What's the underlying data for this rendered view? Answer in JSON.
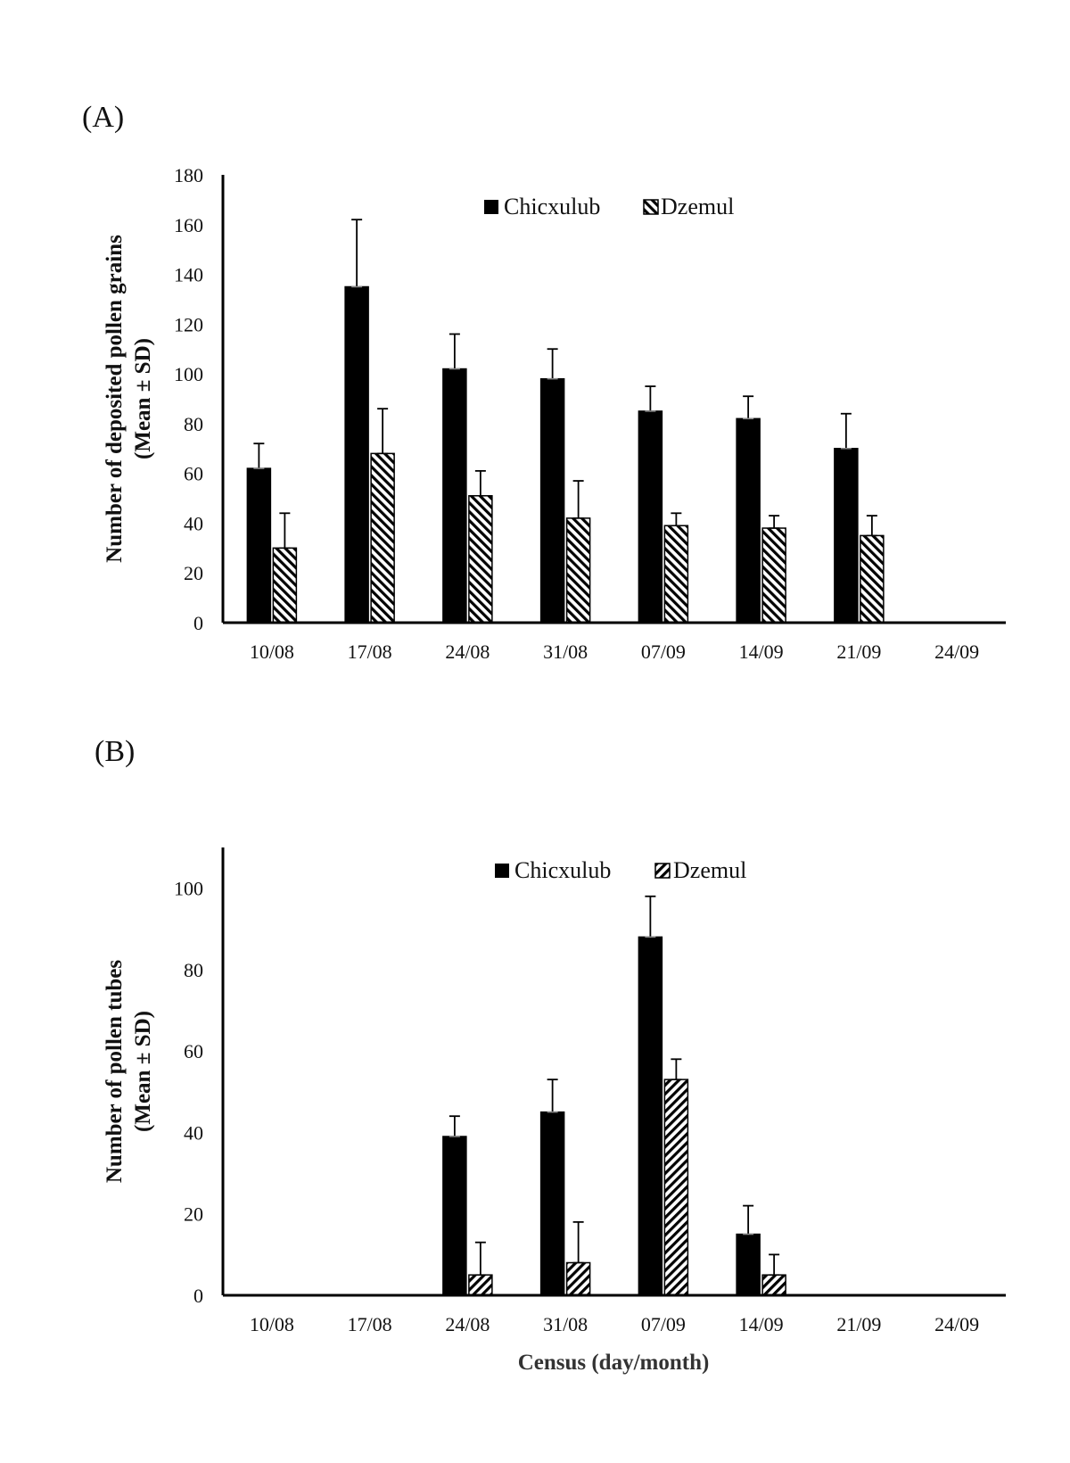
{
  "chart_data": [
    {
      "type": "bar",
      "panel": "(A)",
      "title": "",
      "ylabel": [
        "Number of deposited pollen grains",
        "(Mean ± SD)"
      ],
      "xlabel": "",
      "ylim": [
        0,
        180
      ],
      "yticks": [
        0,
        20,
        40,
        60,
        80,
        100,
        120,
        140,
        160,
        180
      ],
      "categories": [
        "10/08",
        "17/08",
        "24/08",
        "31/08",
        "07/09",
        "14/09",
        "21/09",
        "24/09"
      ],
      "legend_position": "top-center",
      "series": [
        {
          "name": "Chicxulub",
          "pattern": "solid",
          "values": [
            62,
            135,
            102,
            98,
            85,
            82,
            70,
            null
          ],
          "sd": [
            10,
            27,
            14,
            12,
            10,
            9,
            14,
            null
          ]
        },
        {
          "name": "Dzemul",
          "pattern": "hatch-back",
          "values": [
            30,
            68,
            51,
            42,
            39,
            38,
            35,
            null
          ],
          "sd": [
            14,
            18,
            10,
            15,
            5,
            5,
            8,
            null
          ]
        }
      ]
    },
    {
      "type": "bar",
      "panel": "(B)",
      "title": "",
      "ylabel": [
        "Number of pollen tubes",
        "(Mean ± SD)"
      ],
      "xlabel": "Census (day/month)",
      "ylim": [
        0,
        110
      ],
      "yticks": [
        0,
        20,
        40,
        60,
        80,
        100
      ],
      "categories": [
        "10/08",
        "17/08",
        "24/08",
        "31/08",
        "07/09",
        "14/09",
        "21/09",
        "24/09"
      ],
      "legend_position": "top-center",
      "series": [
        {
          "name": "Chicxulub",
          "pattern": "solid",
          "values": [
            null,
            null,
            39,
            45,
            88,
            15,
            null,
            null
          ],
          "sd": [
            null,
            null,
            5,
            8,
            10,
            7,
            null,
            null
          ]
        },
        {
          "name": "Dzemul",
          "pattern": "hatch-forward",
          "values": [
            null,
            null,
            5,
            8,
            53,
            5,
            null,
            null
          ],
          "sd": [
            null,
            null,
            8,
            10,
            5,
            5,
            null,
            null
          ]
        }
      ]
    }
  ]
}
